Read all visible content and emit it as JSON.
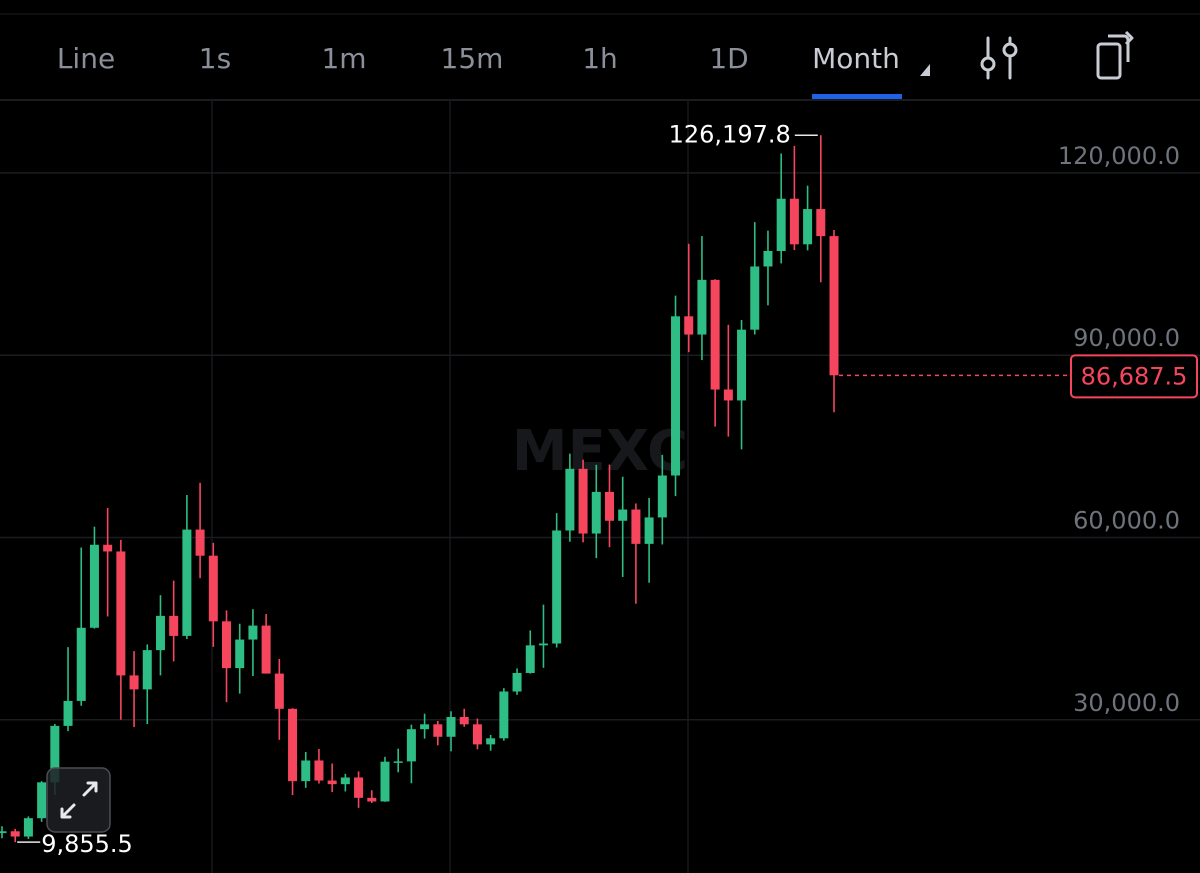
{
  "tabs": [
    "Line",
    "1s",
    "1m",
    "15m",
    "1h",
    "1D",
    "Month"
  ],
  "active_tab": 6,
  "chart_data": {
    "type": "candlestick",
    "watermark": "MEXC",
    "up_color": "#2ebd85",
    "down_color": "#f6465d",
    "ylim": [
      4780,
      132000
    ],
    "yticks": [
      {
        "value": 30000,
        "label": "30,000.0"
      },
      {
        "value": 60000,
        "label": "60,000.0"
      },
      {
        "value": 90000,
        "label": "90,000.0"
      },
      {
        "value": 120000,
        "label": "120,000.0"
      }
    ],
    "grid": true,
    "open": [
      11350,
      11650,
      10780,
      13800,
      19700,
      28990,
      33100,
      45140,
      58800,
      57700,
      37300,
      35000,
      41460,
      47100,
      43800,
      61300,
      57000,
      46200,
      38500,
      43200,
      45500,
      37600,
      31800,
      19900,
      23300,
      20000,
      19400,
      20500,
      17150,
      16550,
      23100,
      23150,
      28450,
      29250,
      27200,
      30450,
      29250,
      25950,
      26950,
      34650,
      37700,
      42250,
      42550,
      61150,
      71300,
      60650,
      67500,
      62750,
      64600,
      58950,
      63300,
      70200,
      96400,
      93400,
      102400,
      84350,
      82550,
      94200,
      104600,
      107150,
      115750,
      108250,
      114050,
      109600
    ],
    "high": [
      12470,
      12050,
      14100,
      19900,
      29300,
      41950,
      58350,
      61780,
      64850,
      59600,
      41300,
      42400,
      50500,
      52900,
      67000,
      69000,
      59100,
      48000,
      45800,
      48200,
      47400,
      40000,
      31900,
      24700,
      25200,
      22800,
      21100,
      21500,
      18400,
      23900,
      25250,
      29200,
      31000,
      29800,
      31400,
      31800,
      30200,
      27500,
      35200,
      38450,
      44700,
      48950,
      64000,
      73800,
      72800,
      71950,
      72000,
      70000,
      65600,
      66500,
      73600,
      99800,
      108350,
      109600,
      102500,
      95000,
      95800,
      111900,
      110500,
      123200,
      124450,
      117900,
      126197.8,
      110600
    ],
    "low": [
      10500,
      9855.5,
      10380,
      13200,
      17600,
      28130,
      32300,
      45000,
      47000,
      30000,
      28800,
      29300,
      37300,
      39600,
      43300,
      53300,
      42000,
      32900,
      34300,
      37200,
      37700,
      26700,
      17600,
      18800,
      19500,
      18100,
      18200,
      15500,
      16300,
      16500,
      21350,
      19550,
      26900,
      25800,
      24800,
      28850,
      25150,
      24900,
      26550,
      34100,
      37600,
      38550,
      41900,
      59300,
      59200,
      56600,
      58400,
      53500,
      49100,
      52550,
      58850,
      66800,
      90500,
      89200,
      78250,
      76600,
      74500,
      93400,
      98200,
      105100,
      107300,
      107250,
      102000,
      80600
    ],
    "close": [
      11650,
      10780,
      13800,
      19700,
      28990,
      33100,
      45140,
      58800,
      57700,
      37300,
      35000,
      41460,
      47100,
      43800,
      61300,
      57000,
      46200,
      38500,
      43200,
      45500,
      37600,
      31800,
      19900,
      23300,
      20000,
      19400,
      20500,
      17150,
      16550,
      23100,
      23150,
      28450,
      29250,
      27200,
      30450,
      29250,
      25950,
      26950,
      34650,
      37700,
      42250,
      42550,
      61150,
      71300,
      60650,
      67500,
      62750,
      64600,
      58950,
      63300,
      70200,
      96400,
      93400,
      102400,
      84350,
      82550,
      94200,
      104600,
      107150,
      115750,
      108250,
      114050,
      109600,
      86687.5
    ],
    "max_label": {
      "value": 126197.8,
      "label": "126,197.8"
    },
    "min_label": {
      "value": 9855.5,
      "label": "9,855.5"
    },
    "last_price": {
      "value": 86687.5,
      "label": "86,687.5"
    }
  }
}
